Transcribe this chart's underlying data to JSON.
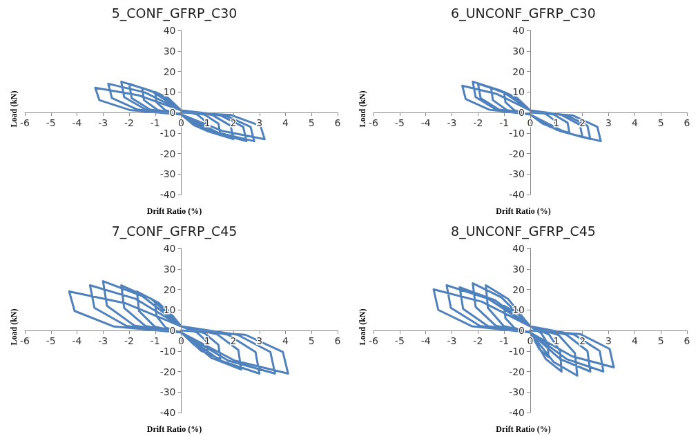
{
  "chart_data": [
    {
      "type": "line",
      "title": "5_CONF_GFRP_C30",
      "xlabel": "Drift Ratio (%)",
      "ylabel": "Load (kN)",
      "xlim": [
        -6,
        6
      ],
      "xticks": [
        -6,
        -5,
        -4,
        -3,
        -2,
        -1,
        0,
        1,
        2,
        3,
        4,
        5,
        6
      ],
      "ylim": [
        -40,
        40
      ],
      "yticks": [
        -40,
        -30,
        -20,
        -10,
        0,
        10,
        20,
        30,
        40
      ],
      "marker": "none",
      "line_style": "solid",
      "series": [
        {
          "color": "#4f81bd",
          "x": [
            0,
            -0.5,
            -1,
            -0.95,
            -0.6,
            0,
            0.5,
            1,
            0.95,
            0.6,
            0,
            -0.75,
            -1.5,
            -1.43,
            -0.9,
            0,
            0.75,
            1.5,
            1.43,
            0.9,
            0,
            -1,
            -2,
            -1.9,
            -1.2,
            0,
            1,
            2,
            1.9,
            1.2,
            0,
            -1.15,
            -2.3,
            -2.19,
            -1.38,
            0,
            1.25,
            2.5,
            2.38,
            1.5,
            0,
            -1.4,
            -2.8,
            -2.66,
            -1.68,
            0,
            1.4,
            2.8,
            2.66,
            1.68,
            0,
            -1.65,
            -3.3,
            -3.14,
            -1.98,
            0,
            1.6,
            3.2,
            3.04,
            1.92,
            0
          ],
          "values": [
            1,
            7,
            10,
            5,
            1,
            -1,
            -6.3,
            -9,
            -4.5,
            -0.9,
            1,
            8.4,
            12,
            6,
            1.2,
            -1,
            -7.7,
            -11,
            -5.5,
            -1.1,
            1,
            9.8,
            14,
            7,
            1.4,
            -1,
            -9.1,
            -13,
            -6.5,
            -1.3,
            1,
            10.5,
            15,
            7.5,
            1.5,
            -1,
            -9.8,
            -14,
            -7,
            -1.4,
            1,
            9.8,
            14,
            7,
            1.4,
            -1,
            -9.8,
            -14,
            -7,
            -1.4,
            1,
            8.4,
            12,
            6,
            1.2,
            -1,
            -9.1,
            -13,
            -6.5,
            -1.3,
            0
          ]
        }
      ]
    },
    {
      "type": "line",
      "title": "6_UNCONF_GFRP_C30",
      "xlabel": "Drift Ratio (%)",
      "ylabel": "Load (kN)",
      "xlim": [
        -6,
        6
      ],
      "xticks": [
        -6,
        -5,
        -4,
        -3,
        -2,
        -1,
        0,
        1,
        2,
        3,
        4,
        5,
        6
      ],
      "ylim": [
        -40,
        40
      ],
      "yticks": [
        -40,
        -30,
        -20,
        -10,
        0,
        10,
        20,
        30,
        40
      ],
      "marker": "none",
      "line_style": "solid",
      "series": [
        {
          "color": "#4f81bd",
          "x": [
            0,
            -0.5,
            -1,
            -0.95,
            -0.6,
            0,
            0.5,
            1,
            0.95,
            0.6,
            0,
            -0.75,
            -1.5,
            -1.43,
            -0.9,
            0,
            0.75,
            1.5,
            1.43,
            0.9,
            0,
            -1,
            -2,
            -1.9,
            -1.2,
            0,
            1,
            2,
            1.9,
            1.2,
            0,
            -1.1,
            -2.2,
            -2.09,
            -1.32,
            0,
            1.15,
            2.3,
            2.19,
            1.38,
            0,
            -1.3,
            -2.6,
            -2.47,
            -1.56,
            0,
            1.35,
            2.7,
            2.57,
            1.62,
            0
          ],
          "values": [
            1,
            7,
            10,
            5,
            1,
            -1,
            -5.6,
            -8,
            -4,
            -0.8,
            1,
            8.4,
            12,
            6,
            1.2,
            -1,
            -7,
            -10,
            -5,
            -1,
            1,
            9.8,
            14,
            7,
            1.4,
            -1,
            -8.4,
            -12,
            -6,
            -1.2,
            1,
            10.5,
            15,
            7.5,
            1.5,
            -1,
            -9.1,
            -13,
            -6.5,
            -1.3,
            1,
            9.1,
            13,
            6.5,
            1.3,
            -1,
            -9.8,
            -14,
            -7,
            -1.4,
            0
          ]
        }
      ]
    },
    {
      "type": "line",
      "title": "7_CONF_GFRP_C45",
      "xlabel": "Drift Ratio (%)",
      "ylabel": "Load (kN)",
      "xlim": [
        -6,
        6
      ],
      "xticks": [
        -6,
        -5,
        -4,
        -3,
        -2,
        -1,
        0,
        1,
        2,
        3,
        4,
        5,
        6
      ],
      "ylim": [
        -40,
        40
      ],
      "yticks": [
        -40,
        -30,
        -20,
        -10,
        0,
        10,
        20,
        30,
        40
      ],
      "marker": "none",
      "line_style": "solid",
      "series": [
        {
          "color": "#4f81bd",
          "x": [
            0,
            -0.5,
            -1,
            -0.95,
            -0.6,
            0,
            0.5,
            1,
            0.95,
            0.6,
            0,
            -0.85,
            -1.7,
            -1.62,
            -1.02,
            0,
            0.75,
            1.5,
            1.43,
            0.9,
            0,
            -1.15,
            -2.3,
            -2.19,
            -1.38,
            0,
            1.15,
            2.3,
            2.19,
            1.38,
            0,
            -1.5,
            -3,
            -2.85,
            -1.8,
            0,
            1.5,
            3,
            2.85,
            1.8,
            0,
            -1.75,
            -3.5,
            -3.33,
            -2.1,
            0,
            1.8,
            3.6,
            3.42,
            2.16,
            0,
            -2.15,
            -4.3,
            -4.09,
            -2.58,
            0,
            2.05,
            4.1,
            3.9,
            2.46,
            0
          ],
          "values": [
            2,
            9.8,
            14,
            7,
            1.4,
            -1,
            -7,
            -10,
            -5,
            -1,
            2,
            13.3,
            19,
            9.5,
            1.9,
            -1,
            -9.8,
            -14,
            -7,
            -1.4,
            2,
            15.4,
            22,
            11,
            2.2,
            -1,
            -13.3,
            -19,
            -9.5,
            -1.9,
            2,
            16.8,
            24,
            12,
            2.4,
            -1,
            -14.7,
            -21,
            -10.5,
            -2.1,
            2,
            15.4,
            22,
            11,
            2.2,
            -1,
            -14.7,
            -21,
            -10.5,
            -2.1,
            2,
            13.3,
            19,
            9.5,
            1.9,
            -1,
            -14.7,
            -21,
            -10.5,
            -2.1,
            0
          ]
        }
      ]
    },
    {
      "type": "line",
      "title": "8_UNCONF_GFRP_C45",
      "xlabel": "Drift Ratio (%)",
      "ylabel": "Load (kN)",
      "xlim": [
        -6,
        6
      ],
      "xticks": [
        -6,
        -5,
        -4,
        -3,
        -2,
        -1,
        0,
        1,
        2,
        3,
        4,
        5,
        6
      ],
      "ylim": [
        -40,
        40
      ],
      "yticks": [
        -40,
        -30,
        -20,
        -10,
        0,
        10,
        20,
        30,
        40
      ],
      "marker": "none",
      "line_style": "solid",
      "series": [
        {
          "color": "#4f81bd",
          "x": [
            0,
            -0.5,
            -1,
            -0.95,
            -0.6,
            0,
            0.35,
            0.7,
            0.67,
            0.42,
            0,
            -0.85,
            -1.7,
            -1.62,
            -1.02,
            0,
            0.6,
            1.2,
            1.14,
            0.72,
            0,
            -1.1,
            -2.2,
            -2.09,
            -1.32,
            0,
            0.9,
            1.8,
            1.71,
            1.08,
            0,
            -1.35,
            -2.7,
            -2.57,
            -1.62,
            0,
            1.15,
            2.3,
            2.19,
            1.38,
            0,
            -1.6,
            -3.2,
            -3.04,
            -1.92,
            0,
            1.4,
            2.8,
            2.66,
            1.68,
            0,
            -1.85,
            -3.7,
            -3.52,
            -2.22,
            0,
            1.6,
            3.2,
            3.04,
            1.92,
            0
          ],
          "values": [
            2,
            8.4,
            12,
            6,
            1.2,
            -1,
            -9.1,
            -13,
            -6.5,
            -1.3,
            2,
            15.4,
            22,
            11,
            2.2,
            -1,
            -14,
            -20,
            -10,
            -2,
            2,
            16.1,
            23,
            11.5,
            2.3,
            -1,
            -15.4,
            -22,
            -11,
            -2.2,
            2,
            14.7,
            21,
            10.5,
            2.1,
            -1,
            -14,
            -20,
            -10,
            -2,
            2,
            15.4,
            22,
            11,
            2.2,
            -1,
            -14,
            -20,
            -10,
            -2,
            2,
            14,
            20,
            10,
            2,
            -1,
            -12.6,
            -18,
            -9,
            -1.8,
            0
          ]
        }
      ]
    }
  ]
}
